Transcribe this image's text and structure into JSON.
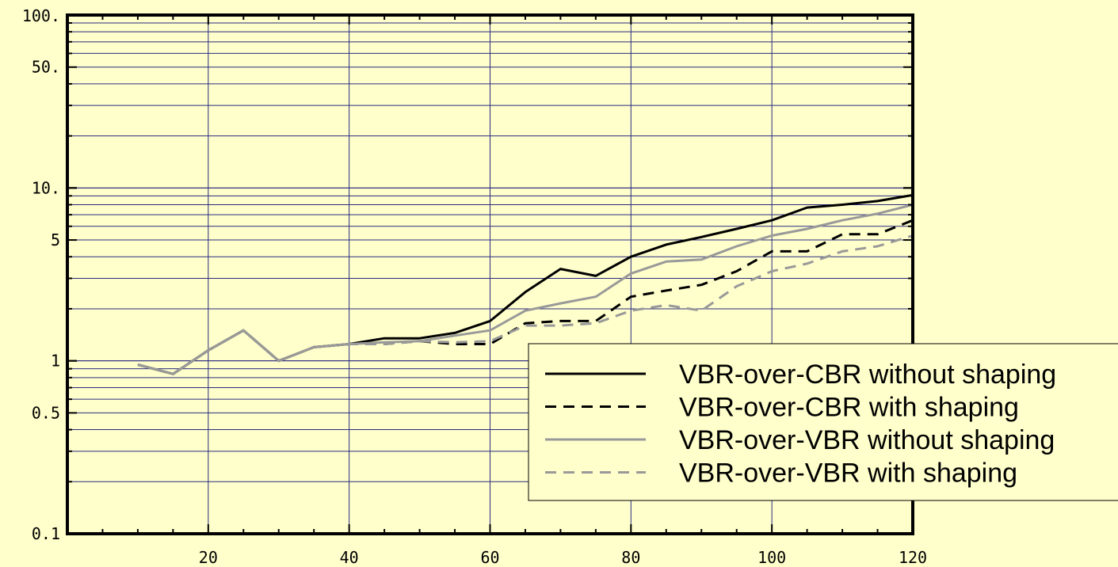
{
  "chart_data": {
    "type": "line",
    "title": "",
    "xlabel": "",
    "ylabel": "",
    "xlim": [
      0,
      120
    ],
    "ylim": [
      0.1,
      100
    ],
    "yscale": "log",
    "grid": true,
    "legend_position": "bottom-right",
    "x_ticks": [
      20,
      40,
      60,
      80,
      100,
      120
    ],
    "x_tick_labels": [
      "20",
      "40",
      "60",
      "80",
      "100",
      "120"
    ],
    "y_ticks": [
      0.1,
      0.5,
      1,
      5,
      10,
      50,
      100
    ],
    "y_tick_labels": [
      "0.1",
      "0.5",
      "1",
      "5",
      "10.",
      "50.",
      "100."
    ],
    "x": [
      10,
      15,
      20,
      25,
      30,
      35,
      40,
      45,
      50,
      55,
      60,
      65,
      70,
      75,
      80,
      85,
      90,
      95,
      100,
      105,
      110,
      115,
      120
    ],
    "series": [
      {
        "name": "VBR-over-CBR without shaping",
        "color": "#000000",
        "dashed": false,
        "values": [
          0.95,
          0.84,
          1.15,
          1.5,
          1.0,
          1.2,
          1.25,
          1.35,
          1.35,
          1.45,
          1.7,
          2.5,
          3.4,
          3.1,
          4.0,
          4.7,
          5.2,
          5.8,
          6.5,
          7.7,
          8.0,
          8.4,
          9.1
        ]
      },
      {
        "name": "VBR-over-CBR with shaping",
        "color": "#000000",
        "dashed": true,
        "values": [
          0.95,
          0.84,
          1.15,
          1.5,
          1.0,
          1.2,
          1.25,
          1.25,
          1.3,
          1.25,
          1.25,
          1.65,
          1.7,
          1.7,
          2.35,
          2.55,
          2.75,
          3.3,
          4.3,
          4.3,
          5.4,
          5.4,
          6.5
        ]
      },
      {
        "name": "VBR-over-VBR without shaping",
        "color": "#999999",
        "dashed": false,
        "values": [
          0.95,
          0.84,
          1.15,
          1.5,
          1.0,
          1.2,
          1.25,
          1.28,
          1.3,
          1.4,
          1.5,
          1.95,
          2.15,
          2.35,
          3.2,
          3.75,
          3.85,
          4.6,
          5.3,
          5.8,
          6.5,
          7.1,
          8.0
        ]
      },
      {
        "name": "VBR-over-VBR with shaping",
        "color": "#999999",
        "dashed": true,
        "values": [
          0.95,
          0.84,
          1.15,
          1.5,
          1.0,
          1.2,
          1.25,
          1.25,
          1.3,
          1.28,
          1.3,
          1.6,
          1.6,
          1.65,
          1.95,
          2.1,
          1.95,
          2.7,
          3.3,
          3.65,
          4.3,
          4.6,
          5.3
        ]
      }
    ]
  }
}
